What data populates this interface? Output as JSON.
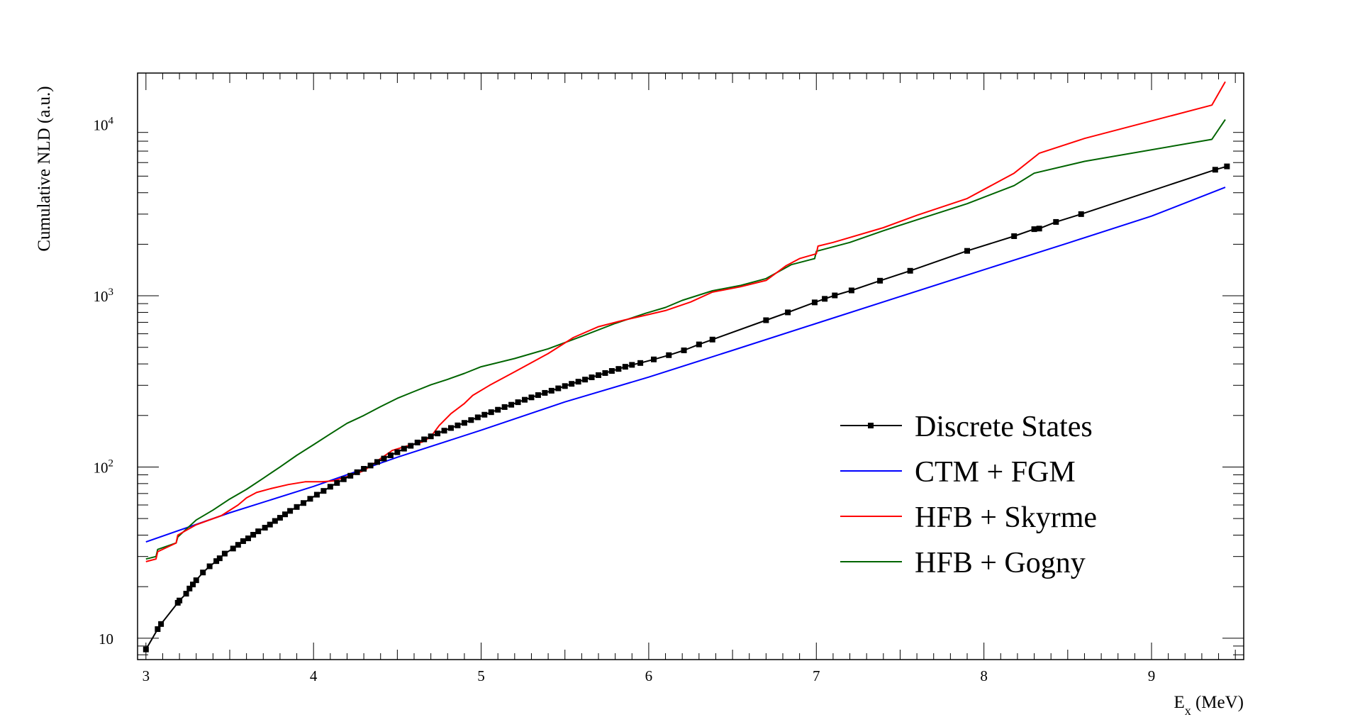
{
  "chart_data": {
    "type": "line",
    "title": "",
    "xlabel": {
      "main": "E",
      "sub": "x",
      "rest": " (MeV)"
    },
    "ylabel": "Cumulative NLD (a.u.)",
    "xlim": [
      2.95,
      9.55
    ],
    "ylim": [
      7.5,
      20000
    ],
    "yscale": "log",
    "grid": false,
    "legend_position": "center-right",
    "xticks": [
      3,
      4,
      5,
      6,
      7,
      8,
      9
    ],
    "xtick_labels": [
      "3",
      "4",
      "5",
      "6",
      "7",
      "8",
      "9"
    ],
    "yticks": [
      10,
      100,
      1000,
      10000
    ],
    "ytick_labels": [
      {
        "base": "10",
        "exp": ""
      },
      {
        "base": "10",
        "exp": "2"
      },
      {
        "base": "10",
        "exp": "3"
      },
      {
        "base": "10",
        "exp": "4"
      }
    ],
    "series": [
      {
        "name": "Discrete States",
        "color": "#000000",
        "marker": "square",
        "points": [
          [
            3.0,
            8.6
          ],
          [
            3.07,
            11.3
          ],
          [
            3.09,
            12.1
          ],
          [
            3.19,
            16.1
          ],
          [
            3.2,
            16.6
          ],
          [
            3.24,
            18.2
          ],
          [
            3.26,
            19.5
          ],
          [
            3.28,
            20.6
          ],
          [
            3.3,
            21.8
          ],
          [
            3.34,
            24.2
          ],
          [
            3.38,
            26.3
          ],
          [
            3.42,
            28.2
          ],
          [
            3.44,
            29.3
          ],
          [
            3.47,
            31.2
          ],
          [
            3.52,
            33.4
          ],
          [
            3.55,
            35.1
          ],
          [
            3.58,
            36.9
          ],
          [
            3.61,
            38.3
          ],
          [
            3.64,
            40.2
          ],
          [
            3.67,
            42.1
          ],
          [
            3.71,
            44.2
          ],
          [
            3.74,
            46.1
          ],
          [
            3.77,
            48.4
          ],
          [
            3.8,
            50.5
          ],
          [
            3.83,
            52.9
          ],
          [
            3.86,
            55.4
          ],
          [
            3.9,
            58.4
          ],
          [
            3.94,
            61.6
          ],
          [
            3.98,
            65.2
          ],
          [
            4.02,
            68.9
          ],
          [
            4.06,
            72.5
          ],
          [
            4.1,
            76.7
          ],
          [
            4.14,
            80.7
          ],
          [
            4.18,
            84.8
          ],
          [
            4.22,
            88.9
          ],
          [
            4.26,
            93.2
          ],
          [
            4.3,
            97.6
          ],
          [
            4.34,
            102
          ],
          [
            4.38,
            107
          ],
          [
            4.42,
            112
          ],
          [
            4.46,
            117
          ],
          [
            4.5,
            122
          ],
          [
            4.54,
            128
          ],
          [
            4.58,
            133
          ],
          [
            4.62,
            139
          ],
          [
            4.66,
            145
          ],
          [
            4.7,
            151
          ],
          [
            4.74,
            157
          ],
          [
            4.78,
            163
          ],
          [
            4.82,
            169
          ],
          [
            4.86,
            175
          ],
          [
            4.9,
            181
          ],
          [
            4.94,
            188
          ],
          [
            4.98,
            195
          ],
          [
            5.02,
            202
          ],
          [
            5.06,
            209
          ],
          [
            5.1,
            216
          ],
          [
            5.14,
            224
          ],
          [
            5.18,
            231
          ],
          [
            5.22,
            239
          ],
          [
            5.26,
            247
          ],
          [
            5.3,
            255
          ],
          [
            5.34,
            263
          ],
          [
            5.38,
            271
          ],
          [
            5.42,
            279
          ],
          [
            5.46,
            288
          ],
          [
            5.5,
            297
          ],
          [
            5.54,
            306
          ],
          [
            5.58,
            315
          ],
          [
            5.62,
            324
          ],
          [
            5.66,
            334
          ],
          [
            5.7,
            344
          ],
          [
            5.74,
            354
          ],
          [
            5.78,
            364
          ],
          [
            5.82,
            374
          ],
          [
            5.86,
            385
          ],
          [
            5.9,
            395
          ],
          [
            5.95,
            405
          ],
          [
            6.03,
            425
          ],
          [
            6.12,
            450
          ],
          [
            6.21,
            480
          ],
          [
            6.3,
            520
          ],
          [
            6.38,
            555
          ],
          [
            6.7,
            720
          ],
          [
            6.83,
            800
          ],
          [
            6.99,
            915
          ],
          [
            7.05,
            960
          ],
          [
            7.11,
            1005
          ],
          [
            7.21,
            1075
          ],
          [
            7.38,
            1225
          ],
          [
            7.56,
            1400
          ],
          [
            7.9,
            1830
          ],
          [
            8.18,
            2230
          ],
          [
            8.3,
            2450
          ],
          [
            8.33,
            2470
          ],
          [
            8.43,
            2700
          ],
          [
            8.58,
            3000
          ],
          [
            9.38,
            5450
          ],
          [
            9.45,
            5700
          ]
        ]
      },
      {
        "name": "CTM + FGM",
        "color": "#0000ff",
        "marker": "none",
        "points": [
          [
            3.0,
            36.5
          ],
          [
            3.5,
            54
          ],
          [
            4.0,
            77
          ],
          [
            4.5,
            114
          ],
          [
            5.0,
            164
          ],
          [
            5.5,
            240
          ],
          [
            6.0,
            335
          ],
          [
            6.5,
            480
          ],
          [
            7.0,
            690
          ],
          [
            7.5,
            990
          ],
          [
            8.0,
            1420
          ],
          [
            8.5,
            2030
          ],
          [
            9.0,
            2920
          ],
          [
            9.44,
            4300
          ]
        ]
      },
      {
        "name": "HFB + Skyrme",
        "color": "#ff0000",
        "marker": "none",
        "points": [
          [
            3.0,
            28
          ],
          [
            3.06,
            29
          ],
          [
            3.07,
            32
          ],
          [
            3.18,
            36
          ],
          [
            3.19,
            40
          ],
          [
            3.3,
            46
          ],
          [
            3.45,
            52
          ],
          [
            3.55,
            60
          ],
          [
            3.6,
            66
          ],
          [
            3.66,
            71
          ],
          [
            3.75,
            75
          ],
          [
            3.85,
            79
          ],
          [
            3.95,
            82
          ],
          [
            4.05,
            82
          ],
          [
            4.12,
            83
          ],
          [
            4.2,
            88
          ],
          [
            4.3,
            95
          ],
          [
            4.4,
            112
          ],
          [
            4.47,
            125
          ],
          [
            4.55,
            132
          ],
          [
            4.65,
            140
          ],
          [
            4.7,
            150
          ],
          [
            4.75,
            175
          ],
          [
            4.82,
            205
          ],
          [
            4.9,
            235
          ],
          [
            4.95,
            262
          ],
          [
            5.05,
            300
          ],
          [
            5.2,
            360
          ],
          [
            5.4,
            460
          ],
          [
            5.55,
            570
          ],
          [
            5.7,
            660
          ],
          [
            5.85,
            720
          ],
          [
            5.98,
            770
          ],
          [
            6.1,
            820
          ],
          [
            6.25,
            920
          ],
          [
            6.38,
            1050
          ],
          [
            6.55,
            1130
          ],
          [
            6.7,
            1230
          ],
          [
            6.82,
            1500
          ],
          [
            6.9,
            1650
          ],
          [
            7.0,
            1760
          ],
          [
            7.01,
            1950
          ],
          [
            7.1,
            2050
          ],
          [
            7.4,
            2500
          ],
          [
            7.6,
            2950
          ],
          [
            7.9,
            3700
          ],
          [
            8.18,
            5200
          ],
          [
            8.33,
            6800
          ],
          [
            8.6,
            8300
          ],
          [
            9.36,
            13000
          ],
          [
            9.44,
            17800
          ]
        ]
      },
      {
        "name": "HFB + Gogny",
        "color": "#006400",
        "marker": "none",
        "points": [
          [
            3.0,
            29
          ],
          [
            3.06,
            30
          ],
          [
            3.07,
            33
          ],
          [
            3.18,
            36
          ],
          [
            3.19,
            39
          ],
          [
            3.3,
            49
          ],
          [
            3.4,
            56
          ],
          [
            3.5,
            65
          ],
          [
            3.6,
            74
          ],
          [
            3.7,
            86
          ],
          [
            3.8,
            100
          ],
          [
            3.9,
            117
          ],
          [
            4.0,
            135
          ],
          [
            4.1,
            156
          ],
          [
            4.2,
            180
          ],
          [
            4.3,
            200
          ],
          [
            4.4,
            225
          ],
          [
            4.5,
            252
          ],
          [
            4.6,
            276
          ],
          [
            4.7,
            302
          ],
          [
            4.8,
            325
          ],
          [
            4.9,
            352
          ],
          [
            5.0,
            385
          ],
          [
            5.2,
            430
          ],
          [
            5.4,
            490
          ],
          [
            5.6,
            580
          ],
          [
            5.8,
            690
          ],
          [
            5.98,
            790
          ],
          [
            6.1,
            855
          ],
          [
            6.2,
            940
          ],
          [
            6.38,
            1070
          ],
          [
            6.55,
            1150
          ],
          [
            6.7,
            1260
          ],
          [
            6.85,
            1520
          ],
          [
            6.99,
            1650
          ],
          [
            7.0,
            1820
          ],
          [
            7.2,
            2050
          ],
          [
            7.4,
            2400
          ],
          [
            7.6,
            2780
          ],
          [
            7.9,
            3450
          ],
          [
            8.18,
            4400
          ],
          [
            8.3,
            5200
          ],
          [
            8.6,
            6100
          ],
          [
            9.36,
            8200
          ],
          [
            9.44,
            10700
          ]
        ]
      }
    ]
  }
}
